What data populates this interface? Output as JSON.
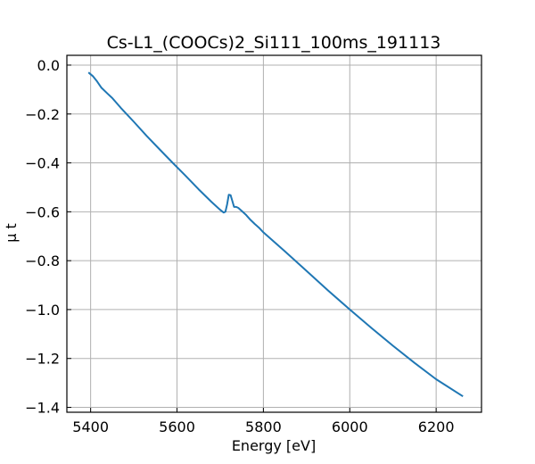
{
  "chart_data": {
    "type": "line",
    "title": "Cs-L1_(COOCs)2_Si111_100ms_191113",
    "xlabel": "Energy [eV]",
    "ylabel": "μ t",
    "xlim": [
      5345,
      6305
    ],
    "ylim": [
      -1.42,
      0.04
    ],
    "x_ticks": [
      5400,
      5600,
      5800,
      6000,
      6200
    ],
    "y_ticks": [
      0.0,
      -0.2,
      -0.4,
      -0.6,
      -0.8,
      -1.0,
      -1.2,
      -1.4
    ],
    "x_tick_labels": [
      "5400",
      "5600",
      "5800",
      "6000",
      "6200"
    ],
    "y_tick_labels": [
      "0.0",
      "−0.2",
      "−0.4",
      "−0.6",
      "−0.8",
      "−1.0",
      "−1.2",
      "−1.4"
    ],
    "grid": true,
    "legend": false,
    "series": [
      {
        "color": "#1f77b4",
        "x": [
          5395,
          5405,
          5415,
          5425,
          5440,
          5450,
          5470,
          5500,
          5530,
          5560,
          5590,
          5620,
          5650,
          5680,
          5700,
          5708,
          5712,
          5716,
          5720,
          5724,
          5728,
          5732,
          5737,
          5742,
          5750,
          5760,
          5770,
          5780,
          5790,
          5800,
          5850,
          5900,
          5950,
          6000,
          6050,
          6100,
          6150,
          6200,
          6262
        ],
        "y": [
          -0.03,
          -0.045,
          -0.067,
          -0.093,
          -0.118,
          -0.135,
          -0.175,
          -0.232,
          -0.29,
          -0.345,
          -0.4,
          -0.453,
          -0.508,
          -0.56,
          -0.592,
          -0.603,
          -0.6,
          -0.57,
          -0.53,
          -0.532,
          -0.555,
          -0.58,
          -0.58,
          -0.584,
          -0.597,
          -0.613,
          -0.633,
          -0.65,
          -0.665,
          -0.684,
          -0.762,
          -0.842,
          -0.922,
          -1.0,
          -1.075,
          -1.148,
          -1.218,
          -1.285,
          -1.355
        ]
      }
    ]
  }
}
